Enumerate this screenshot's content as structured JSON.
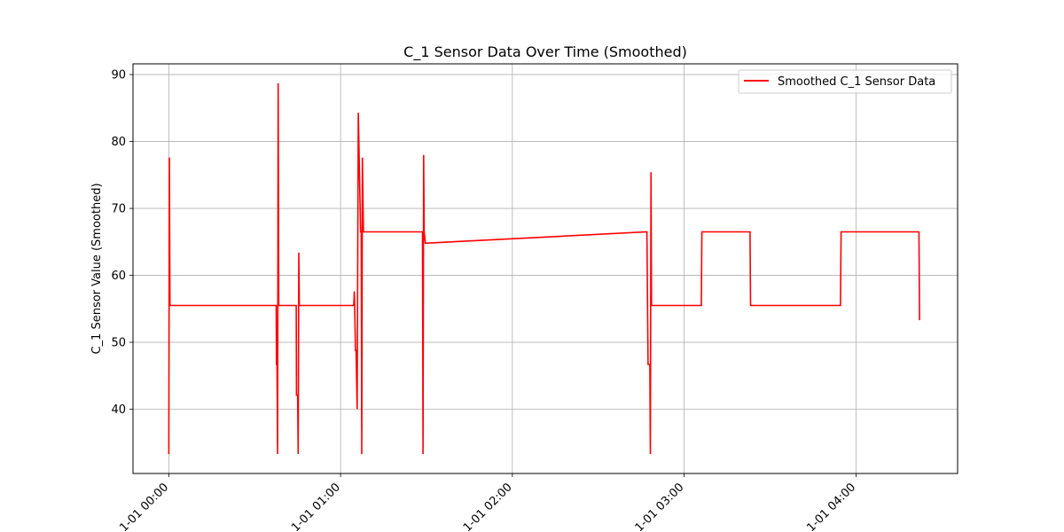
{
  "chart_data": {
    "type": "line",
    "title": "C_1 Sensor Data Over Time (Smoothed)",
    "xlabel": "",
    "ylabel": "C_1 Sensor Value (Smoothed)",
    "x_ticks": [
      {
        "label": "1-01 00:00",
        "minutes": 0
      },
      {
        "label": "1-01 01:00",
        "minutes": 60
      },
      {
        "label": "1-01 02:00",
        "minutes": 120
      },
      {
        "label": "1-01 03:00",
        "minutes": 180
      },
      {
        "label": "1-01 04:00",
        "minutes": 240
      }
    ],
    "y_ticks": [
      40,
      50,
      60,
      70,
      80,
      90
    ],
    "xlim": [
      -12.5,
      275.5
    ],
    "ylim": [
      30.4,
      91.6
    ],
    "grid": true,
    "legend_position": "upper right",
    "series": [
      {
        "name": "Smoothed C_1 Sensor Data",
        "color": "#ff0000",
        "x": [
          0,
          0.2,
          0.4,
          0.6,
          0.8,
          37.5,
          37.6,
          37.8,
          38.0,
          38.2,
          38.4,
          44.5,
          44.6,
          45.0,
          45.2,
          45.4,
          45.6,
          64.6,
          64.8,
          65.0,
          65.2,
          65.4,
          65.8,
          66.2,
          67.0,
          67.2,
          67.4,
          67.6,
          68.0,
          69.8,
          70.0,
          70.2,
          70.4,
          88.6,
          88.8,
          89.0,
          89.2,
          89.6,
          167.0,
          167.4,
          168.0,
          168.2,
          168.4,
          168.6,
          186.0,
          186.2,
          203.0,
          203.2,
          234.6,
          234.8,
          262.0,
          262.2
        ],
        "y": [
          33.3,
          77.6,
          55.5,
          55.5,
          55.5,
          55.5,
          46.7,
          46.7,
          33.3,
          88.7,
          55.5,
          55.5,
          42.1,
          42.1,
          33.3,
          63.4,
          55.5,
          55.5,
          57.6,
          53.3,
          48.8,
          48.8,
          40.0,
          84.3,
          66.5,
          66.5,
          33.3,
          77.6,
          66.5,
          66.5,
          66.5,
          66.5,
          66.5,
          66.5,
          33.3,
          78.0,
          66.5,
          64.8,
          66.5,
          46.7,
          46.7,
          33.3,
          75.4,
          55.5,
          55.5,
          66.5,
          66.5,
          55.5,
          55.5,
          66.5,
          66.5,
          53.3
        ]
      }
    ]
  }
}
